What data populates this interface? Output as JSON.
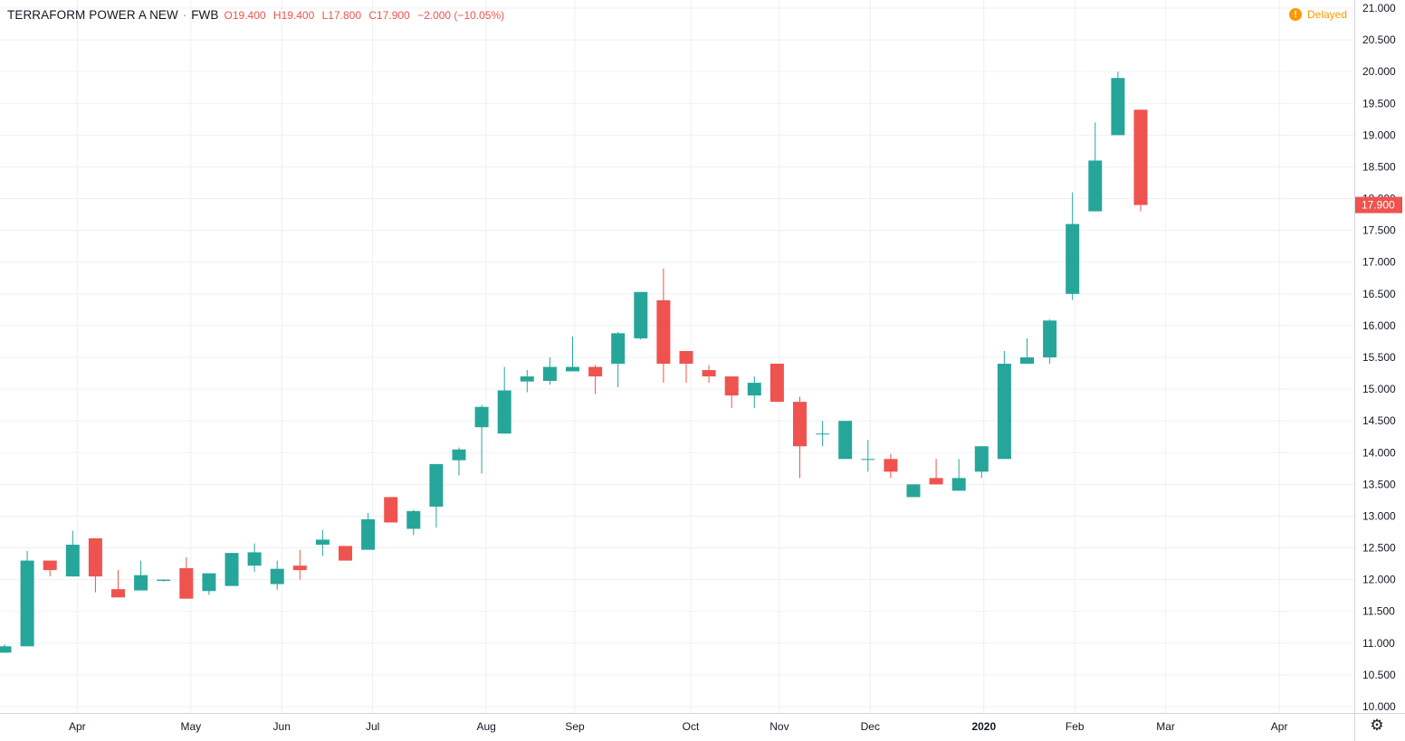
{
  "header": {
    "symbol": "TERRAFORM POWER A NEW",
    "separator": "·",
    "exchange": "FWB",
    "open_key": "O",
    "open": "19.400",
    "high_key": "H",
    "high": "19.400",
    "low_key": "L",
    "low": "17.800",
    "close_key": "C",
    "close": "17.900",
    "change": "−2.000 (−10.05%)"
  },
  "status": {
    "label": "Delayed",
    "icon": "exclamation-icon"
  },
  "settings": {
    "icon": "gear-icon"
  },
  "colors": {
    "up": "#26a69a",
    "down": "#ef5350",
    "grid": "#eef0f3",
    "axis_text": "#131722",
    "price_tag": "#ef5350"
  },
  "chart_data": {
    "type": "candlestick",
    "interval": "weekly",
    "ylim": [
      10.0,
      21.0
    ],
    "y_ticks": [
      "10.000",
      "10.500",
      "11.000",
      "11.500",
      "12.000",
      "12.500",
      "13.000",
      "13.500",
      "14.000",
      "14.500",
      "15.000",
      "15.500",
      "16.000",
      "16.500",
      "17.000",
      "17.500",
      "18.000",
      "18.500",
      "19.000",
      "19.500",
      "20.000",
      "20.500",
      "21.000"
    ],
    "x_ticks": [
      {
        "label": "Apr",
        "week_index": 3.2
      },
      {
        "label": "May",
        "week_index": 8.2
      },
      {
        "label": "Jun",
        "week_index": 12.2
      },
      {
        "label": "Jul",
        "week_index": 16.2
      },
      {
        "label": "Aug",
        "week_index": 21.2
      },
      {
        "label": "Sep",
        "week_index": 25.1
      },
      {
        "label": "Oct",
        "week_index": 30.2
      },
      {
        "label": "Nov",
        "week_index": 34.1
      },
      {
        "label": "Dec",
        "week_index": 38.1
      },
      {
        "label": "2020",
        "week_index": 43.1
      },
      {
        "label": "Feb",
        "week_index": 47.1
      },
      {
        "label": "Mar",
        "week_index": 51.1
      },
      {
        "label": "Apr",
        "week_index": 56.1
      }
    ],
    "last_price": "17.900",
    "candles": [
      {
        "o": 10.85,
        "h": 10.98,
        "l": 10.85,
        "c": 10.95
      },
      {
        "o": 10.95,
        "h": 12.45,
        "l": 10.95,
        "c": 12.3
      },
      {
        "o": 12.3,
        "h": 12.3,
        "l": 12.05,
        "c": 12.15
      },
      {
        "o": 12.05,
        "h": 12.77,
        "l": 12.05,
        "c": 12.55
      },
      {
        "o": 12.65,
        "h": 12.65,
        "l": 11.8,
        "c": 12.05
      },
      {
        "o": 11.85,
        "h": 12.15,
        "l": 11.72,
        "c": 11.72
      },
      {
        "o": 11.83,
        "h": 12.3,
        "l": 11.83,
        "c": 12.07
      },
      {
        "o": 11.98,
        "h": 12.0,
        "l": 11.97,
        "c": 12.0
      },
      {
        "o": 12.18,
        "h": 12.35,
        "l": 11.7,
        "c": 11.7
      },
      {
        "o": 11.82,
        "h": 12.1,
        "l": 11.76,
        "c": 12.1
      },
      {
        "o": 11.9,
        "h": 12.42,
        "l": 11.9,
        "c": 12.42
      },
      {
        "o": 12.22,
        "h": 12.57,
        "l": 12.12,
        "c": 12.43
      },
      {
        "o": 11.93,
        "h": 12.3,
        "l": 11.84,
        "c": 12.17
      },
      {
        "o": 12.22,
        "h": 12.47,
        "l": 12.0,
        "c": 12.15
      },
      {
        "o": 12.55,
        "h": 12.78,
        "l": 12.37,
        "c": 12.63
      },
      {
        "o": 12.53,
        "h": 12.53,
        "l": 12.3,
        "c": 12.3
      },
      {
        "o": 12.47,
        "h": 13.05,
        "l": 12.47,
        "c": 12.95
      },
      {
        "o": 13.3,
        "h": 13.3,
        "l": 12.9,
        "c": 12.9
      },
      {
        "o": 12.8,
        "h": 13.1,
        "l": 12.7,
        "c": 13.08
      },
      {
        "o": 13.15,
        "h": 13.82,
        "l": 12.82,
        "c": 13.82
      },
      {
        "o": 13.88,
        "h": 14.08,
        "l": 13.64,
        "c": 14.05
      },
      {
        "o": 14.4,
        "h": 14.75,
        "l": 13.67,
        "c": 14.72
      },
      {
        "o": 14.3,
        "h": 15.35,
        "l": 14.3,
        "c": 14.98
      },
      {
        "o": 15.12,
        "h": 15.3,
        "l": 14.95,
        "c": 15.2
      },
      {
        "o": 15.13,
        "h": 15.5,
        "l": 15.07,
        "c": 15.35
      },
      {
        "o": 15.28,
        "h": 15.83,
        "l": 15.28,
        "c": 15.35
      },
      {
        "o": 15.35,
        "h": 15.38,
        "l": 14.92,
        "c": 15.2
      },
      {
        "o": 15.4,
        "h": 15.9,
        "l": 15.03,
        "c": 15.88
      },
      {
        "o": 15.8,
        "h": 16.53,
        "l": 15.78,
        "c": 16.53
      },
      {
        "o": 16.4,
        "h": 16.9,
        "l": 15.1,
        "c": 15.4
      },
      {
        "o": 15.6,
        "h": 15.6,
        "l": 15.1,
        "c": 15.4
      },
      {
        "o": 15.3,
        "h": 15.38,
        "l": 15.1,
        "c": 15.2
      },
      {
        "o": 15.2,
        "h": 15.2,
        "l": 14.7,
        "c": 14.9
      },
      {
        "o": 14.9,
        "h": 15.2,
        "l": 14.7,
        "c": 15.1
      },
      {
        "o": 15.4,
        "h": 15.4,
        "l": 14.8,
        "c": 14.8
      },
      {
        "o": 14.8,
        "h": 14.88,
        "l": 13.6,
        "c": 14.1
      },
      {
        "o": 14.3,
        "h": 14.5,
        "l": 14.1,
        "c": 14.3
      },
      {
        "o": 13.9,
        "h": 14.5,
        "l": 13.9,
        "c": 14.5
      },
      {
        "o": 13.9,
        "h": 14.2,
        "l": 13.7,
        "c": 13.9
      },
      {
        "o": 13.9,
        "h": 13.98,
        "l": 13.6,
        "c": 13.7
      },
      {
        "o": 13.3,
        "h": 13.5,
        "l": 13.3,
        "c": 13.5
      },
      {
        "o": 13.6,
        "h": 13.9,
        "l": 13.5,
        "c": 13.5
      },
      {
        "o": 13.4,
        "h": 13.9,
        "l": 13.4,
        "c": 13.6
      },
      {
        "o": 13.7,
        "h": 14.1,
        "l": 13.6,
        "c": 14.1
      },
      {
        "o": 13.9,
        "h": 15.6,
        "l": 13.9,
        "c": 15.4
      },
      {
        "o": 15.4,
        "h": 15.8,
        "l": 15.4,
        "c": 15.5
      },
      {
        "o": 15.5,
        "h": 16.1,
        "l": 15.4,
        "c": 16.08
      },
      {
        "o": 16.5,
        "h": 18.1,
        "l": 16.4,
        "c": 17.6
      },
      {
        "o": 17.8,
        "h": 19.2,
        "l": 17.8,
        "c": 18.6
      },
      {
        "o": 19.0,
        "h": 20.0,
        "l": 19.0,
        "c": 19.9
      },
      {
        "o": 19.4,
        "h": 19.4,
        "l": 17.8,
        "c": 17.9
      }
    ]
  }
}
